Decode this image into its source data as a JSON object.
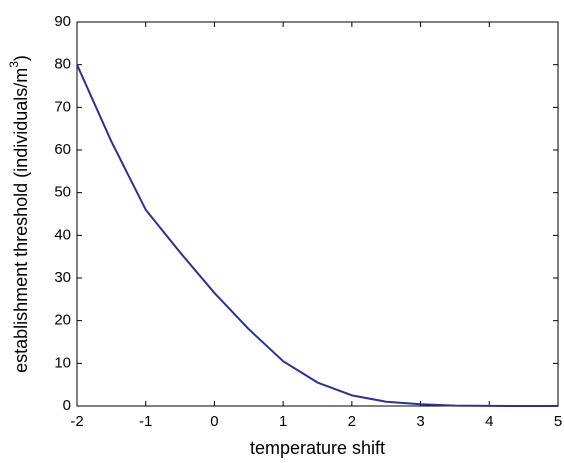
{
  "chart_data": {
    "type": "line",
    "xlabel": "temperature shift",
    "ylabel": "establishment threshold (individuals/m",
    "ylabel_superscript": "3",
    "ylabel_suffix": ")",
    "x": [
      -2,
      -1.5,
      -1,
      -0.5,
      0,
      0.5,
      1,
      1.5,
      2,
      2.5,
      3,
      3.5,
      4,
      4.5,
      5
    ],
    "values": [
      80,
      62,
      46,
      36,
      26.5,
      18,
      10.5,
      5.5,
      2.5,
      1,
      0.4,
      0.1,
      0.03,
      0,
      0
    ],
    "color": "#2f2f9c",
    "xlim": [
      -2,
      5
    ],
    "xticks": [
      -2,
      -1,
      0,
      1,
      2,
      3,
      4,
      5
    ],
    "ylim": [
      0,
      90
    ],
    "yticks": [
      0,
      10,
      20,
      30,
      40,
      50,
      60,
      70,
      80,
      90
    ],
    "grid": false
  }
}
